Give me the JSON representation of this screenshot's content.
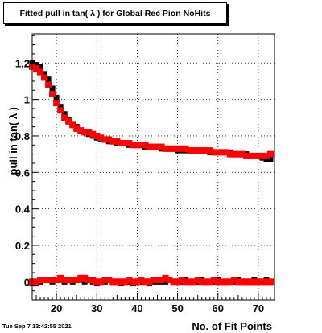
{
  "title": "Fitted pull in tan( λ ) for Global Rec Pion NoHits",
  "footer": {
    "timestamp": "Tue Sep  7 13:42:55 2021"
  },
  "chart_data": {
    "type": "scatter",
    "title": "Fitted pull in tan( λ ) for Global Rec Pion NoHits",
    "xlabel": "No. of Fit Points",
    "ylabel": "pull in tan( λ )",
    "xlim": [
      14,
      74
    ],
    "ylim": [
      -0.1,
      1.36
    ],
    "x_ticks": [
      20,
      30,
      40,
      50,
      60,
      70
    ],
    "y_ticks": [
      0,
      0.2,
      0.4,
      0.6,
      0.8,
      1,
      1.2
    ],
    "y_tick_labels": [
      "0",
      "0.2",
      "0.4",
      "0.6",
      "0.8",
      "1",
      "1.2"
    ],
    "grid": true,
    "colors": {
      "black_series": "#000000",
      "red_series": "#ff0000"
    },
    "series": [
      {
        "color": "black",
        "x": [
          14,
          15,
          16,
          17,
          18,
          19,
          20,
          21,
          22,
          23,
          24,
          25,
          26,
          27,
          28,
          29,
          30,
          31,
          32,
          33,
          34,
          35,
          36,
          37,
          38,
          39,
          40,
          41,
          42,
          43,
          44,
          45,
          46,
          47,
          48,
          49,
          50,
          51,
          52,
          53,
          54,
          55,
          56,
          57,
          58,
          59,
          60,
          61,
          62,
          63,
          64,
          65,
          66,
          67,
          68,
          69,
          70,
          71,
          72,
          73
        ],
        "y": [
          1.2,
          1.19,
          1.18,
          1.14,
          1.11,
          1.06,
          1.01,
          0.96,
          0.92,
          0.89,
          0.86,
          0.85,
          0.83,
          0.82,
          0.81,
          0.8,
          0.79,
          0.78,
          0.78,
          0.77,
          0.77,
          0.76,
          0.76,
          0.76,
          0.75,
          0.75,
          0.75,
          0.75,
          0.74,
          0.74,
          0.74,
          0.74,
          0.73,
          0.73,
          0.73,
          0.73,
          0.72,
          0.72,
          0.72,
          0.72,
          0.72,
          0.72,
          0.72,
          0.72,
          0.71,
          0.71,
          0.71,
          0.71,
          0.71,
          0.71,
          0.7,
          0.7,
          0.7,
          0.7,
          0.69,
          0.69,
          0.69,
          0.68,
          0.67,
          0.67
        ]
      },
      {
        "color": "red",
        "x": [
          14,
          15,
          16,
          17,
          18,
          19,
          20,
          21,
          22,
          23,
          24,
          25,
          26,
          27,
          28,
          29,
          30,
          31,
          32,
          33,
          34,
          35,
          36,
          37,
          38,
          39,
          40,
          41,
          42,
          43,
          44,
          45,
          46,
          47,
          48,
          49,
          50,
          51,
          52,
          53,
          54,
          55,
          56,
          57,
          58,
          59,
          60,
          61,
          62,
          63,
          64,
          65,
          66,
          67,
          68,
          69,
          70,
          71,
          72,
          73
        ],
        "y": [
          1.18,
          1.17,
          1.15,
          1.12,
          1.08,
          1.03,
          0.98,
          0.94,
          0.9,
          0.88,
          0.86,
          0.84,
          0.83,
          0.82,
          0.82,
          0.81,
          0.8,
          0.79,
          0.78,
          0.78,
          0.77,
          0.77,
          0.76,
          0.76,
          0.76,
          0.75,
          0.75,
          0.75,
          0.75,
          0.74,
          0.74,
          0.74,
          0.74,
          0.73,
          0.73,
          0.73,
          0.73,
          0.73,
          0.73,
          0.72,
          0.72,
          0.72,
          0.72,
          0.72,
          0.72,
          0.71,
          0.71,
          0.71,
          0.71,
          0.7,
          0.7,
          0.7,
          0.7,
          0.69,
          0.69,
          0.69,
          0.69,
          0.69,
          0.69,
          0.7
        ]
      },
      {
        "color": "black",
        "x": [
          14,
          15,
          16,
          17,
          18,
          19,
          20,
          21,
          22,
          23,
          24,
          25,
          26,
          27,
          28,
          29,
          30,
          31,
          32,
          33,
          34,
          35,
          36,
          37,
          38,
          39,
          40,
          41,
          42,
          43,
          44,
          45,
          46,
          47,
          48,
          49,
          50,
          51,
          52,
          53,
          54,
          55,
          56,
          57,
          58,
          59,
          60,
          61,
          62,
          63,
          64,
          65,
          66,
          67,
          68,
          69,
          70,
          71,
          72,
          73
        ],
        "y": [
          -0.01,
          -0.01,
          0.0,
          0.01,
          0.01,
          0.0,
          0.01,
          0.01,
          0.0,
          0.01,
          0.0,
          0.01,
          0.01,
          0.0,
          0.01,
          0.0,
          -0.01,
          0.0,
          0.0,
          0.01,
          0.0,
          0.0,
          -0.01,
          0.0,
          0.0,
          -0.01,
          0.0,
          0.0,
          0.0,
          -0.01,
          0.0,
          0.0,
          0.0,
          0.0,
          0.01,
          0.0,
          0.0,
          0.0,
          0.01,
          0.0,
          0.0,
          0.0,
          0.01,
          0.0,
          0.0,
          0.0,
          0.01,
          0.0,
          0.0,
          0.0,
          0.0,
          0.01,
          0.0,
          0.0,
          0.0,
          0.01,
          0.0,
          0.0,
          0.01,
          0.0
        ]
      },
      {
        "color": "red",
        "x": [
          14,
          15,
          16,
          17,
          18,
          19,
          20,
          21,
          22,
          23,
          24,
          25,
          26,
          27,
          28,
          29,
          30,
          31,
          32,
          33,
          34,
          35,
          36,
          37,
          38,
          39,
          40,
          41,
          42,
          43,
          44,
          45,
          46,
          47,
          48,
          49,
          50,
          51,
          52,
          53,
          54,
          55,
          56,
          57,
          58,
          59,
          60,
          61,
          62,
          63,
          64,
          65,
          66,
          67,
          68,
          69,
          70,
          71,
          72,
          73
        ],
        "y": [
          0.0,
          0.0,
          0.01,
          0.01,
          0.01,
          0.01,
          0.01,
          0.02,
          0.01,
          0.01,
          0.01,
          0.01,
          0.02,
          0.02,
          0.01,
          0.01,
          0.0,
          0.0,
          0.01,
          0.01,
          0.0,
          0.0,
          0.0,
          0.0,
          0.01,
          0.0,
          0.0,
          0.01,
          0.0,
          0.0,
          0.01,
          0.01,
          0.01,
          0.02,
          0.01,
          0.0,
          0.0,
          0.01,
          0.0,
          0.0,
          0.0,
          0.01,
          0.0,
          0.0,
          0.0,
          0.01,
          0.0,
          0.0,
          0.0,
          0.0,
          0.01,
          0.0,
          0.0,
          0.0,
          0.0,
          0.0,
          0.0,
          0.0,
          0.0,
          0.0
        ]
      }
    ]
  }
}
